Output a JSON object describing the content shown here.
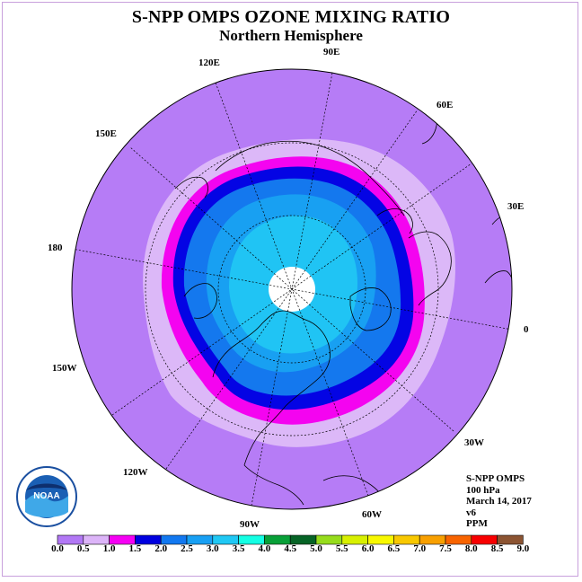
{
  "title": "S-NPP OMPS OZONE MIXING RATIO",
  "subtitle": "Northern Hemisphere",
  "logo_text": "NOAA",
  "longitude_labels": [
    {
      "name": "lon-label-90e",
      "text": "90E"
    },
    {
      "name": "lon-label-120e",
      "text": "120E"
    },
    {
      "name": "lon-label-60e",
      "text": "60E"
    },
    {
      "name": "lon-label-150e",
      "text": "150E"
    },
    {
      "name": "lon-label-30e",
      "text": "30E"
    },
    {
      "name": "lon-label-180",
      "text": "180"
    },
    {
      "name": "lon-label-0",
      "text": "0"
    },
    {
      "name": "lon-label-150w",
      "text": "150W"
    },
    {
      "name": "lon-label-30w",
      "text": "30W"
    },
    {
      "name": "lon-label-120w",
      "text": "120W"
    },
    {
      "name": "lon-label-60w",
      "text": "60W"
    },
    {
      "name": "lon-label-90w",
      "text": "90W"
    }
  ],
  "info": {
    "instrument": "S-NPP OMPS",
    "level": "100 hPa",
    "date": "March 14, 2017",
    "version": "v6",
    "units": "PPM"
  },
  "colorbar": {
    "ticks": [
      "0.0",
      "0.5",
      "1.0",
      "1.5",
      "2.0",
      "2.5",
      "3.0",
      "3.5",
      "4.0",
      "4.5",
      "5.0",
      "5.5",
      "6.0",
      "6.5",
      "7.0",
      "7.5",
      "8.0",
      "8.5",
      "9.0"
    ],
    "colors": [
      "#b278f5",
      "#dcb4f8",
      "#f600f4",
      "#0000e0",
      "#1278f0",
      "#18a0f4",
      "#20c8f4",
      "#14ffe4",
      "#08a038",
      "#066426",
      "#96dc1c",
      "#d8f000",
      "#f8f800",
      "#f8c800",
      "#f8a000",
      "#f86400",
      "#f80000",
      "#8c5432"
    ]
  },
  "contour_colors": {
    "background": "#b67cf6",
    "level_0_5": "#dcb8f8",
    "level_1_0": "#f404f0",
    "level_1_5": "#0404e4",
    "level_2_0": "#1478ee",
    "level_2_5": "#18a0f2",
    "level_3_0": "#20c4f4",
    "pole_hole": "#ffffff"
  }
}
